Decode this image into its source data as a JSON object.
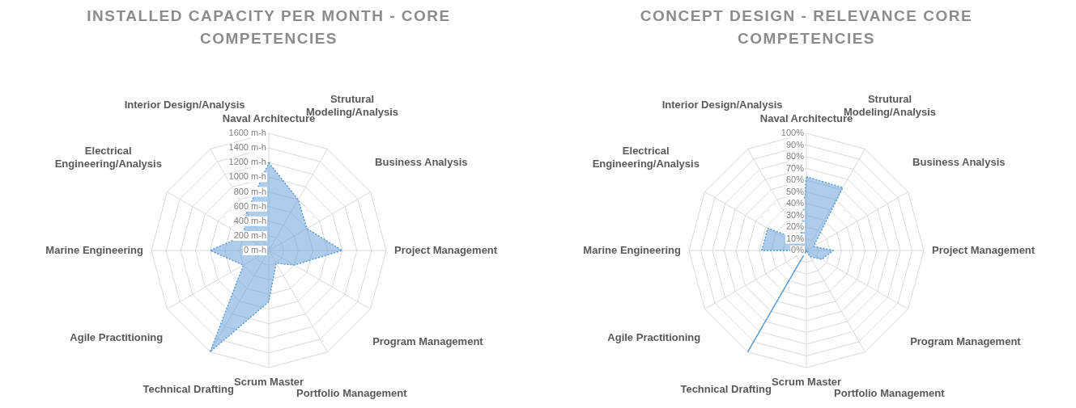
{
  "chart_data": [
    {
      "type": "radar",
      "title": "INSTALLED CAPACITY PER MONTH - CORE COMPETENCIES",
      "categories": [
        "Naval Architecture",
        "Strutural Modeling/Analysis",
        "Business Analysis",
        "Project Management",
        "Program Management",
        "Portfolio Management",
        "Scrum Master",
        "Technical Drafting",
        "Agile Practitioning",
        "Marine Engineering",
        "Electrical Engineering/Analysis",
        "Interior Design/Analysis"
      ],
      "series": [
        {
          "color": "#5b9bd5",
          "values": [
            1200,
            800,
            600,
            1000,
            400,
            200,
            700,
            1600,
            400,
            800,
            400,
            600
          ]
        }
      ],
      "ylim": [
        0,
        1600
      ],
      "yticks": [
        {
          "value": 0,
          "label": "0 m-h"
        },
        {
          "value": 200,
          "label": "200 m-h"
        },
        {
          "value": 400,
          "label": "400 m-h"
        },
        {
          "value": 600,
          "label": "600 m-h"
        },
        {
          "value": 800,
          "label": "800 m-h"
        },
        {
          "value": 1000,
          "label": "1000 m-h"
        },
        {
          "value": 1200,
          "label": "1200 m-h"
        },
        {
          "value": 1400,
          "label": "1400 m-h"
        },
        {
          "value": 1600,
          "label": "1600 m-h"
        }
      ],
      "grid": true,
      "legend": false,
      "marker": "none",
      "line_style": "dotted"
    },
    {
      "type": "radar",
      "title": "CONCEPT DESIGN - RELEVANCE CORE COMPETENCIES",
      "categories": [
        "Naval Architecture",
        "Strutural Modeling/Analysis",
        "Business Analysis",
        "Project Management",
        "Program Management",
        "Portfolio Management",
        "Scrum Master",
        "Technical Drafting",
        "Agile Practitioning",
        "Marine Engineering",
        "Electrical Engineering/Analysis",
        "Interior Design/Analysis"
      ],
      "series": [
        {
          "color": "#5b9bd5",
          "values": [
            63,
            62,
            7,
            23,
            15,
            6,
            0,
            100,
            0,
            38,
            38,
            10
          ]
        }
      ],
      "ylim": [
        0,
        100
      ],
      "yticks": [
        {
          "value": 0,
          "label": "0%"
        },
        {
          "value": 10,
          "label": "10%"
        },
        {
          "value": 20,
          "label": "20%"
        },
        {
          "value": 30,
          "label": "30%"
        },
        {
          "value": 40,
          "label": "40%"
        },
        {
          "value": 50,
          "label": "50%"
        },
        {
          "value": 60,
          "label": "60%"
        },
        {
          "value": 70,
          "label": "70%"
        },
        {
          "value": 80,
          "label": "80%"
        },
        {
          "value": 90,
          "label": "90%"
        },
        {
          "value": 100,
          "label": "100%"
        }
      ],
      "grid": true,
      "legend": false,
      "marker": "none",
      "line_style": "dotted"
    }
  ]
}
